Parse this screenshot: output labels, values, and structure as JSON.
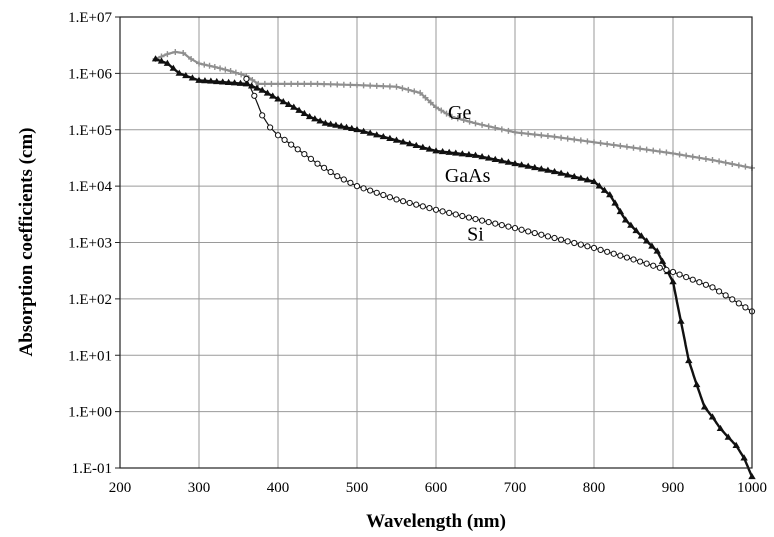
{
  "chart_data": {
    "type": "line",
    "title": "",
    "xlabel": "Wavelength (nm)",
    "ylabel": "Absorption coefficients (cm)",
    "xlim": [
      200,
      1000
    ],
    "x_ticks": [
      200,
      300,
      400,
      500,
      600,
      700,
      800,
      900,
      1000
    ],
    "x_tick_labels": [
      "200",
      "300",
      "400",
      "500",
      "600",
      "700",
      "800",
      "900",
      "1000"
    ],
    "y_scale": "log",
    "ylim": [
      0.1,
      10000000
    ],
    "y_ticks": [
      0.1,
      1,
      10,
      100,
      1000,
      10000,
      100000,
      1000000,
      10000000
    ],
    "y_tick_labels": [
      "1.E-01",
      "1.E+00",
      "1.E+01",
      "1.E+02",
      "1.E+03",
      "1.E+04",
      "1.E+05",
      "1.E+06",
      "1.E+07"
    ],
    "grid": true,
    "series": [
      {
        "name": "Ge",
        "color": "#8f8f8f",
        "marker": "plus",
        "x": [
          245,
          260,
          270,
          280,
          290,
          300,
          320,
          340,
          360,
          375,
          400,
          450,
          500,
          550,
          580,
          600,
          620,
          650,
          700,
          750,
          800,
          850,
          900,
          950,
          1000
        ],
        "y": [
          1800000,
          2200000,
          2400000,
          2300000,
          1800000,
          1500000,
          1300000,
          1100000,
          900000,
          650000,
          650000,
          650000,
          620000,
          580000,
          450000,
          250000,
          170000,
          130000,
          90000,
          75000,
          60000,
          48000,
          38000,
          29000,
          21000
        ]
      },
      {
        "name": "GaAs",
        "color": "#111111",
        "marker": "triangle",
        "x": [
          245,
          260,
          275,
          300,
          330,
          360,
          380,
          400,
          420,
          440,
          460,
          480,
          500,
          550,
          600,
          650,
          700,
          750,
          800,
          820,
          840,
          860,
          880,
          900,
          910,
          920,
          930,
          940,
          950,
          960,
          970,
          980,
          990,
          1000
        ],
        "y": [
          1800000,
          1500000,
          1000000,
          750000,
          700000,
          650000,
          500000,
          350000,
          250000,
          170000,
          130000,
          115000,
          100000,
          65000,
          42000,
          35000,
          25000,
          18000,
          12000,
          7000,
          2500,
          1300,
          700,
          200,
          40,
          8,
          3,
          1.2,
          0.8,
          0.5,
          0.35,
          0.25,
          0.15,
          0.07
        ]
      },
      {
        "name": "Si",
        "color": "#111111",
        "marker": "circle",
        "x": [
          360,
          370,
          380,
          390,
          400,
          425,
          450,
          475,
          500,
          550,
          600,
          650,
          700,
          750,
          800,
          850,
          900,
          950,
          1000
        ],
        "y": [
          800000,
          400000,
          180000,
          110000,
          80000,
          45000,
          25000,
          15000,
          10000,
          5800,
          3800,
          2600,
          1800,
          1200,
          800,
          500,
          300,
          160,
          60
        ]
      }
    ],
    "annotations": [
      {
        "text": "Ge",
        "x": 630,
        "y": 200000
      },
      {
        "text": "GaAs",
        "x": 640,
        "y": 15000
      },
      {
        "text": "Si",
        "x": 650,
        "y": 1400
      }
    ]
  }
}
